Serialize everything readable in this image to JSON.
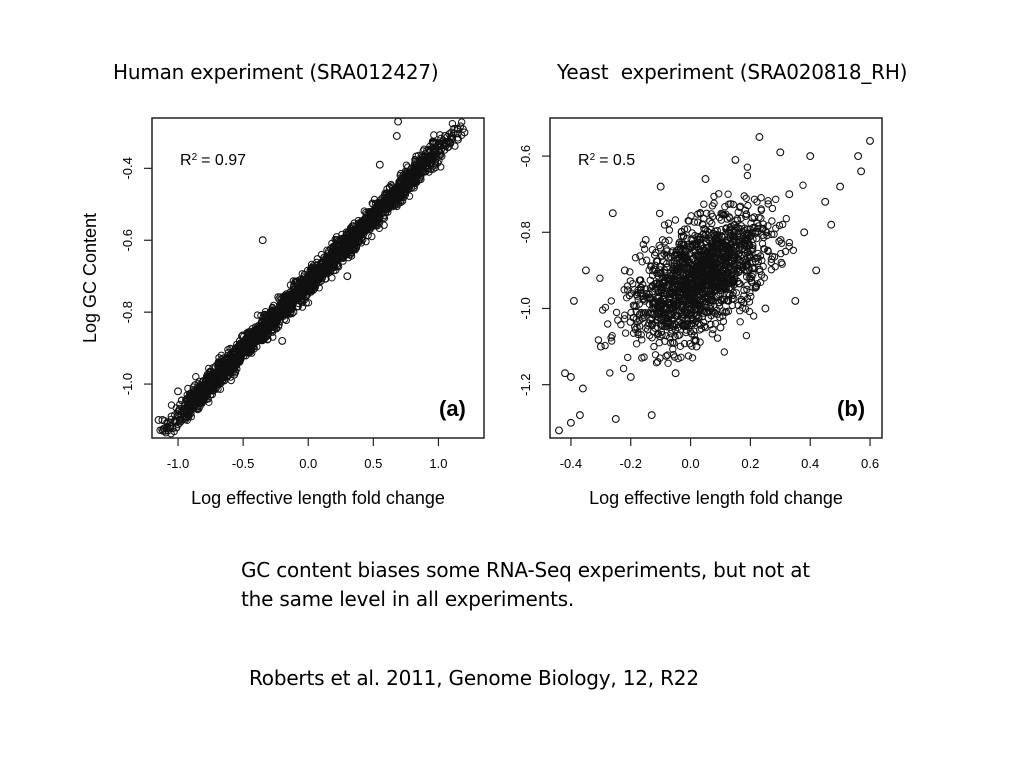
{
  "headings": {
    "left": "Human experiment (SRA012427)",
    "right": "Yeast  experiment (SRA020818_RH)"
  },
  "caption": "GC content biases some RNA-Seq experiments, but not at the same level in all experiments.",
  "citation": "Roberts et al. 2011, Genome Biology, 12, R22",
  "chart_data": [
    {
      "type": "scatter",
      "panel_label": "(a)",
      "r2_text": "= 0.97",
      "xlabel": "Log effective length fold change",
      "ylabel": "Log GC Content",
      "xlim": [
        -1.2,
        1.35
      ],
      "ylim": [
        -1.15,
        -0.26
      ],
      "xticks": [
        -1.0,
        -0.5,
        0.0,
        0.5,
        1.0
      ],
      "xtick_labels": [
        "-1.0",
        "-0.5",
        "0.0",
        "0.5",
        "1.0"
      ],
      "yticks": [
        -1.0,
        -0.8,
        -0.6,
        -0.4
      ],
      "ytick_labels": [
        "-1.0",
        "-0.8",
        "-0.6",
        "-0.4"
      ],
      "trend": {
        "slope": 0.37,
        "intercept": -0.72,
        "spread": 0.018
      },
      "points": [
        [
          -1.12,
          -1.1
        ],
        [
          -1.08,
          -1.12
        ],
        [
          -1.15,
          -1.1
        ],
        [
          -1.1,
          -1.13
        ],
        [
          -1.05,
          -1.09
        ],
        [
          -0.95,
          -1.07
        ],
        [
          -0.9,
          -1.05
        ],
        [
          -0.85,
          -1.03
        ],
        [
          -0.8,
          -1.01
        ],
        [
          -0.75,
          -0.99
        ],
        [
          -0.7,
          -0.98
        ],
        [
          -0.6,
          -0.95
        ],
        [
          -0.5,
          -0.91
        ],
        [
          -0.4,
          -0.87
        ],
        [
          -0.3,
          -0.83
        ],
        [
          -0.2,
          -0.79
        ],
        [
          -0.1,
          -0.76
        ],
        [
          0.0,
          -0.72
        ],
        [
          0.1,
          -0.68
        ],
        [
          0.2,
          -0.64
        ],
        [
          0.3,
          -0.6
        ],
        [
          0.4,
          -0.56
        ],
        [
          0.5,
          -0.52
        ],
        [
          0.6,
          -0.48
        ],
        [
          0.7,
          -0.44
        ],
        [
          0.8,
          -0.4
        ],
        [
          0.9,
          -0.36
        ],
        [
          1.0,
          -0.33
        ],
        [
          1.05,
          -0.31
        ],
        [
          1.1,
          -0.3
        ],
        [
          1.12,
          -0.29
        ],
        [
          1.2,
          -0.3
        ],
        [
          0.69,
          -0.27
        ],
        [
          0.68,
          -0.31
        ],
        [
          0.55,
          -0.39
        ],
        [
          -0.35,
          -0.6
        ],
        [
          -1.0,
          -1.02
        ],
        [
          -0.2,
          -0.88
        ],
        [
          0.3,
          -0.7
        ],
        [
          1.15,
          -0.32
        ]
      ]
    },
    {
      "type": "scatter",
      "panel_label": "(b)",
      "r2_text": "= 0.5",
      "xlabel": "Log effective length fold change",
      "ylabel": "",
      "xlim": [
        -0.47,
        0.64
      ],
      "ylim": [
        -1.34,
        -0.5
      ],
      "xticks": [
        -0.4,
        -0.2,
        0.0,
        0.2,
        0.4,
        0.6
      ],
      "xtick_labels": [
        "-0.4",
        "-0.2",
        "0.0",
        "0.2",
        "0.4",
        "0.6"
      ],
      "yticks": [
        -1.2,
        -1.0,
        -0.8,
        -0.6
      ],
      "ytick_labels": [
        "-1.2",
        "-1.0",
        "-0.8",
        "-0.6"
      ],
      "trend": {
        "slope": 0.42,
        "intercept": -0.93,
        "spread": 0.07
      },
      "points": [
        [
          -0.44,
          -1.32
        ],
        [
          -0.4,
          -1.3
        ],
        [
          -0.37,
          -1.28
        ],
        [
          -0.36,
          -1.21
        ],
        [
          -0.42,
          -1.17
        ],
        [
          -0.4,
          -1.18
        ],
        [
          -0.25,
          -1.29
        ],
        [
          -0.13,
          -1.28
        ],
        [
          -0.26,
          -0.75
        ],
        [
          -0.1,
          -0.68
        ],
        [
          0.05,
          -0.66
        ],
        [
          0.15,
          -0.61
        ],
        [
          0.23,
          -0.55
        ],
        [
          0.3,
          -0.59
        ],
        [
          0.4,
          -0.6
        ],
        [
          0.5,
          -0.68
        ],
        [
          0.56,
          -0.6
        ],
        [
          0.6,
          -0.56
        ],
        [
          0.57,
          -0.64
        ],
        [
          0.47,
          -0.78
        ],
        [
          0.38,
          -0.8
        ],
        [
          0.42,
          -0.9
        ],
        [
          0.35,
          -0.98
        ],
        [
          -0.35,
          -0.9
        ],
        [
          -0.39,
          -0.98
        ],
        [
          -0.3,
          -1.1
        ],
        [
          -0.2,
          -1.18
        ],
        [
          -0.05,
          -1.17
        ],
        [
          0.1,
          -1.05
        ],
        [
          0.25,
          -1.0
        ],
        [
          0.45,
          -0.72
        ],
        [
          0.33,
          -0.7
        ],
        [
          -0.15,
          -0.82
        ],
        [
          -0.22,
          -0.9
        ],
        [
          0.02,
          -1.1
        ]
      ]
    }
  ]
}
